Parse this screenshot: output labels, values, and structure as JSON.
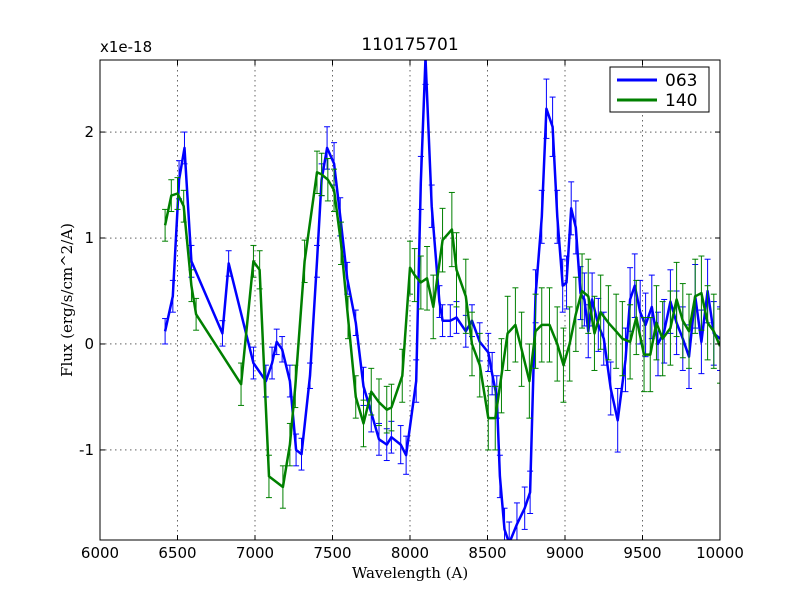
{
  "chart_data": {
    "type": "line",
    "title": "110175701",
    "xlabel": "Wavelength (A)",
    "ylabel": "Flux (erg/s/cm^2/A)",
    "y_multiplier_label": "x1e-18",
    "xlim": [
      6000,
      10000
    ],
    "ylim": [
      -1.85,
      2.68
    ],
    "xticks": [
      6000,
      6500,
      7000,
      7500,
      8000,
      8500,
      9000,
      9500,
      10000
    ],
    "xtick_labels": [
      "6000",
      "6500",
      "7000",
      "7500",
      "8000",
      "8500",
      "9000",
      "9500",
      "10000"
    ],
    "yticks": [
      -1,
      0,
      1,
      2
    ],
    "ytick_labels": [
      "-1",
      "0",
      "1",
      "2"
    ],
    "grid": true,
    "legend_position": "top-right",
    "series": [
      {
        "name": "063",
        "color": "#0000ff",
        "x": [
          6420,
          6470,
          6510,
          6545,
          6590,
          6790,
          6830,
          6990,
          7070,
          7110,
          7140,
          7175,
          7225,
          7265,
          7300,
          7355,
          7400,
          7430,
          7465,
          7510,
          7550,
          7595,
          7650,
          7700,
          7750,
          7800,
          7850,
          7880,
          7940,
          7975,
          8040,
          8070,
          8100,
          8140,
          8190,
          8210,
          8260,
          8300,
          8360,
          8400,
          8450,
          8505,
          8530,
          8560,
          8580,
          8610,
          8640,
          8690,
          8740,
          8775,
          8810,
          8850,
          8880,
          8920,
          8950,
          8985,
          9010,
          9040,
          9070,
          9100,
          9125,
          9150,
          9175,
          9215,
          9250,
          9295,
          9340,
          9390,
          9420,
          9450,
          9485,
          9520,
          9560,
          9600,
          9640,
          9680,
          9720,
          9760,
          9800,
          9840,
          9880,
          9920,
          9960,
          10000
        ],
        "y": [
          0.12,
          0.45,
          1.55,
          1.85,
          0.78,
          0.1,
          0.76,
          -0.18,
          -0.35,
          -0.18,
          0.02,
          -0.05,
          -0.35,
          -1.0,
          -1.04,
          -0.3,
          0.78,
          1.55,
          1.85,
          1.7,
          1.2,
          0.62,
          0.2,
          -0.4,
          -0.65,
          -0.9,
          -0.95,
          -0.88,
          -0.95,
          -1.05,
          -0.35,
          1.52,
          2.7,
          1.3,
          0.4,
          0.22,
          0.22,
          0.25,
          0.12,
          0.22,
          0.02,
          -0.08,
          -0.28,
          -0.5,
          -1.25,
          -1.75,
          -1.88,
          -1.7,
          -1.55,
          -1.4,
          0.45,
          1.2,
          2.22,
          2.05,
          1.2,
          0.55,
          0.58,
          1.28,
          1.1,
          0.48,
          0.42,
          0.12,
          0.42,
          0.18,
          0.05,
          -0.42,
          -0.72,
          -0.15,
          0.42,
          0.55,
          0.3,
          0.18,
          0.35,
          0.0,
          0.12,
          0.4,
          0.2,
          0.05,
          -0.12,
          0.45,
          0.02,
          0.5,
          0.1,
          0.05
        ],
        "error": [
          0.12,
          0.15,
          0.18,
          0.15,
          0.15,
          0.12,
          0.12,
          0.15,
          0.15,
          0.15,
          0.12,
          0.12,
          0.15,
          0.15,
          0.15,
          0.12,
          0.15,
          0.15,
          0.2,
          0.2,
          0.18,
          0.15,
          0.12,
          0.18,
          0.18,
          0.15,
          0.15,
          0.15,
          0.18,
          0.18,
          0.2,
          0.25,
          0.25,
          0.2,
          0.15,
          0.15,
          0.15,
          0.15,
          0.15,
          0.15,
          0.18,
          0.18,
          0.2,
          0.2,
          0.2,
          0.2,
          0.2,
          0.2,
          0.2,
          0.2,
          0.25,
          0.25,
          0.28,
          0.28,
          0.25,
          0.25,
          0.25,
          0.25,
          0.25,
          0.25,
          0.25,
          0.25,
          0.25,
          0.25,
          0.25,
          0.25,
          0.3,
          0.3,
          0.3,
          0.3,
          0.3,
          0.3,
          0.3,
          0.3,
          0.3,
          0.3,
          0.3,
          0.3,
          0.3,
          0.3,
          0.3,
          0.3,
          0.3,
          0.3
        ]
      },
      {
        "name": "140",
        "color": "#008000",
        "x": [
          6420,
          6460,
          6500,
          6540,
          6590,
          6620,
          6910,
          6990,
          7030,
          7090,
          7180,
          7225,
          7260,
          7320,
          7400,
          7430,
          7470,
          7510,
          7555,
          7600,
          7650,
          7700,
          7750,
          7800,
          7850,
          7880,
          7950,
          8000,
          8030,
          8070,
          8110,
          8150,
          8210,
          8270,
          8300,
          8360,
          8400,
          8450,
          8505,
          8550,
          8590,
          8630,
          8680,
          8720,
          8770,
          8810,
          8850,
          8900,
          8950,
          8990,
          9030,
          9070,
          9110,
          9150,
          9190,
          9230,
          9280,
          9330,
          9370,
          9420,
          9460,
          9510,
          9550,
          9590,
          9630,
          9680,
          9720,
          9760,
          9800,
          9840,
          9880,
          9920,
          9960,
          10000
        ],
        "y": [
          1.12,
          1.4,
          1.42,
          1.3,
          0.55,
          0.28,
          -0.38,
          0.78,
          0.7,
          -1.25,
          -1.35,
          -0.95,
          -0.4,
          0.78,
          1.62,
          1.6,
          1.55,
          1.45,
          0.95,
          0.25,
          -0.5,
          -0.75,
          -0.45,
          -0.55,
          -0.62,
          -0.6,
          -0.3,
          0.72,
          0.65,
          0.58,
          0.62,
          0.35,
          0.98,
          1.08,
          0.7,
          0.45,
          0.0,
          -0.2,
          -0.7,
          -0.7,
          -0.3,
          0.1,
          0.18,
          -0.05,
          -0.35,
          0.12,
          0.18,
          0.18,
          0.0,
          -0.2,
          0.0,
          0.28,
          0.5,
          0.45,
          0.1,
          0.3,
          0.2,
          0.12,
          0.05,
          0.02,
          0.25,
          -0.1,
          -0.1,
          0.2,
          0.05,
          0.15,
          0.42,
          0.22,
          0.12,
          0.45,
          0.48,
          0.2,
          0.12,
          -0.02
        ],
        "error": [
          0.15,
          0.15,
          0.15,
          0.15,
          0.15,
          0.15,
          0.2,
          0.15,
          0.18,
          0.2,
          0.2,
          0.2,
          0.2,
          0.2,
          0.2,
          0.2,
          0.2,
          0.2,
          0.2,
          0.2,
          0.2,
          0.22,
          0.22,
          0.22,
          0.22,
          0.22,
          0.25,
          0.25,
          0.25,
          0.25,
          0.3,
          0.3,
          0.3,
          0.35,
          0.35,
          0.35,
          0.3,
          0.3,
          0.3,
          0.3,
          0.35,
          0.35,
          0.35,
          0.35,
          0.35,
          0.35,
          0.35,
          0.35,
          0.35,
          0.35,
          0.35,
          0.35,
          0.35,
          0.35,
          0.35,
          0.35,
          0.35,
          0.35,
          0.35,
          0.35,
          0.35,
          0.35,
          0.35,
          0.35,
          0.35,
          0.35,
          0.35,
          0.35,
          0.35,
          0.35,
          0.35,
          0.35,
          0.35,
          0.35
        ]
      }
    ]
  }
}
